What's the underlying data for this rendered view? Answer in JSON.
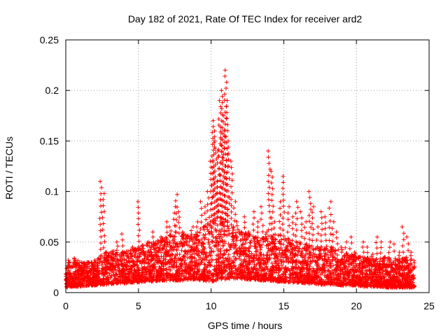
{
  "chart_data": {
    "type": "scatter",
    "title": "Day 182 of 2021, Rate Of TEC Index for receiver ard2",
    "xlabel": "GPS time / hours",
    "ylabel": "ROTI / TECUs",
    "xlim": [
      0,
      25
    ],
    "ylim": [
      0,
      0.25
    ],
    "xticks": [
      0,
      5,
      10,
      15,
      20,
      25
    ],
    "yticks": [
      0,
      0.05,
      0.1,
      0.15,
      0.2,
      0.25
    ],
    "xtick_labels": [
      "0",
      "5",
      "10",
      "15",
      "20",
      "25"
    ],
    "ytick_labels": [
      "0",
      "0.05",
      "0.1",
      "0.15",
      "0.2",
      "0.25"
    ],
    "grid": true,
    "marker": "+",
    "color": "#ff0000",
    "series": [
      {
        "x": [
          0.2,
          0.6,
          1.0,
          1.5,
          2.0,
          2.4,
          2.6,
          2.8,
          3.2,
          3.5,
          3.9,
          4.2,
          4.6,
          5.0,
          5.3,
          5.7,
          6.0,
          6.3,
          6.6,
          6.9,
          7.2,
          7.5,
          7.6,
          7.8,
          8.1,
          8.4,
          8.7,
          9.0,
          9.3,
          9.6,
          9.8,
          10.0,
          10.1,
          10.2,
          10.3,
          10.4,
          10.5,
          10.6,
          10.7,
          10.8,
          10.9,
          11.0,
          11.1,
          11.2,
          11.4,
          11.6,
          11.8,
          12.0,
          12.3,
          12.6,
          12.9,
          13.2,
          13.5,
          13.8,
          14.0,
          14.2,
          14.4,
          14.7,
          15.0,
          15.3,
          15.6,
          15.9,
          16.2,
          16.5,
          16.8,
          17.0,
          17.3,
          17.6,
          17.9,
          18.2,
          18.4,
          18.7,
          19.0,
          19.3,
          19.6,
          19.9,
          20.2,
          20.5,
          20.8,
          21.1,
          21.4,
          21.7,
          22.0,
          22.3,
          22.6,
          22.9,
          23.2,
          23.5,
          23.8
        ],
        "y": [
          0.02,
          0.025,
          0.018,
          0.03,
          0.022,
          0.11,
          0.098,
          0.04,
          0.035,
          0.05,
          0.058,
          0.03,
          0.045,
          0.09,
          0.04,
          0.05,
          0.06,
          0.045,
          0.055,
          0.07,
          0.065,
          0.085,
          0.097,
          0.08,
          0.06,
          0.055,
          0.065,
          0.07,
          0.09,
          0.085,
          0.1,
          0.13,
          0.17,
          0.16,
          0.15,
          0.11,
          0.14,
          0.19,
          0.2,
          0.175,
          0.16,
          0.22,
          0.19,
          0.15,
          0.13,
          0.09,
          0.07,
          0.06,
          0.075,
          0.06,
          0.08,
          0.07,
          0.085,
          0.06,
          0.14,
          0.12,
          0.07,
          0.09,
          0.115,
          0.085,
          0.075,
          0.09,
          0.08,
          0.07,
          0.1,
          0.085,
          0.065,
          0.08,
          0.075,
          0.09,
          0.07,
          0.06,
          0.045,
          0.05,
          0.055,
          0.04,
          0.035,
          0.05,
          0.045,
          0.038,
          0.055,
          0.05,
          0.035,
          0.05,
          0.048,
          0.04,
          0.065,
          0.055,
          0.04
        ]
      }
    ],
    "band": {
      "x": [
        0,
        0.5,
        1,
        1.5,
        2,
        2.5,
        3,
        3.5,
        4,
        4.5,
        5,
        5.5,
        6,
        6.5,
        7,
        7.5,
        8,
        8.5,
        9,
        9.5,
        10,
        10.5,
        11,
        11.5,
        12,
        12.5,
        13,
        13.5,
        14,
        14.5,
        15,
        15.5,
        16,
        16.5,
        17,
        17.5,
        18,
        18.5,
        19,
        19.5,
        20,
        20.5,
        21,
        21.5,
        22,
        22.5,
        23,
        23.5,
        24
      ],
      "low": [
        0.005,
        0.006,
        0.006,
        0.007,
        0.007,
        0.008,
        0.008,
        0.009,
        0.009,
        0.01,
        0.01,
        0.011,
        0.011,
        0.012,
        0.012,
        0.012,
        0.012,
        0.013,
        0.013,
        0.012,
        0.011,
        0.012,
        0.013,
        0.014,
        0.014,
        0.013,
        0.013,
        0.012,
        0.012,
        0.011,
        0.011,
        0.01,
        0.01,
        0.009,
        0.009,
        0.008,
        0.008,
        0.008,
        0.007,
        0.007,
        0.007,
        0.006,
        0.006,
        0.006,
        0.005,
        0.005,
        0.005,
        0.005,
        0.005
      ],
      "high": [
        0.03,
        0.035,
        0.03,
        0.03,
        0.032,
        0.038,
        0.04,
        0.042,
        0.04,
        0.042,
        0.045,
        0.048,
        0.05,
        0.052,
        0.055,
        0.06,
        0.058,
        0.056,
        0.06,
        0.065,
        0.07,
        0.075,
        0.072,
        0.066,
        0.06,
        0.058,
        0.055,
        0.054,
        0.056,
        0.058,
        0.056,
        0.052,
        0.05,
        0.048,
        0.046,
        0.045,
        0.046,
        0.044,
        0.04,
        0.038,
        0.036,
        0.035,
        0.034,
        0.033,
        0.035,
        0.034,
        0.033,
        0.035,
        0.032
      ]
    }
  }
}
